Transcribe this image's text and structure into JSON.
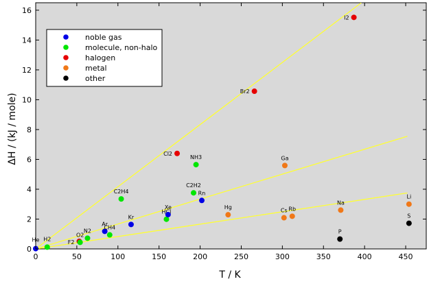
{
  "chart_data": {
    "type": "scatter",
    "xlabel": "T / K",
    "ylabel": "ΔH / (kJ / mole)",
    "xlim": [
      0,
      475
    ],
    "ylim": [
      0,
      16.5
    ],
    "xticks": [
      0,
      50,
      100,
      150,
      200,
      250,
      300,
      350,
      400,
      450
    ],
    "yticks": [
      0,
      2,
      4,
      6,
      8,
      10,
      12,
      14,
      16
    ],
    "grid": false,
    "legend_position": "top-left",
    "background": "#d9d9d9",
    "categories": [
      {
        "key": "noble",
        "name": "noble gas",
        "color": "#0000e6"
      },
      {
        "key": "molecule",
        "name": "molecule, non-halo",
        "color": "#00e600"
      },
      {
        "key": "halogen",
        "name": "halogen",
        "color": "#e60000"
      },
      {
        "key": "metal",
        "name": "metal",
        "color": "#f07818"
      },
      {
        "key": "other",
        "name": "other",
        "color": "#000000"
      }
    ],
    "points": [
      {
        "label": "He",
        "x": 0,
        "y": 0.02,
        "cat": "noble"
      },
      {
        "label": "H2",
        "x": 14,
        "y": 0.12,
        "cat": "molecule"
      },
      {
        "label": "F2",
        "x": 53,
        "y": 0.51,
        "cat": "halogen"
      },
      {
        "label": "O2",
        "x": 54,
        "y": 0.44,
        "cat": "molecule"
      },
      {
        "label": "N2",
        "x": 63,
        "y": 0.72,
        "cat": "molecule"
      },
      {
        "label": "Ar",
        "x": 84,
        "y": 1.18,
        "cat": "noble"
      },
      {
        "label": "CH4",
        "x": 90,
        "y": 0.94,
        "cat": "molecule"
      },
      {
        "label": "Kr",
        "x": 116,
        "y": 1.64,
        "cat": "noble"
      },
      {
        "label": "C2H4",
        "x": 104,
        "y": 3.35,
        "cat": "molecule"
      },
      {
        "label": "HCl",
        "x": 159,
        "y": 1.99,
        "cat": "molecule"
      },
      {
        "label": "Xe",
        "x": 161,
        "y": 2.3,
        "cat": "noble"
      },
      {
        "label": "Cl2",
        "x": 172,
        "y": 6.4,
        "cat": "halogen"
      },
      {
        "label": "C2H2",
        "x": 192,
        "y": 3.76,
        "cat": "molecule"
      },
      {
        "label": "NH3",
        "x": 195,
        "y": 5.65,
        "cat": "molecule"
      },
      {
        "label": "Rn",
        "x": 202,
        "y": 3.25,
        "cat": "noble"
      },
      {
        "label": "Hg",
        "x": 234,
        "y": 2.29,
        "cat": "metal"
      },
      {
        "label": "Br2",
        "x": 266,
        "y": 10.57,
        "cat": "halogen"
      },
      {
        "label": "Cs",
        "x": 302,
        "y": 2.09,
        "cat": "metal"
      },
      {
        "label": "Ga",
        "x": 303,
        "y": 5.59,
        "cat": "metal"
      },
      {
        "label": "Rb",
        "x": 312,
        "y": 2.19,
        "cat": "metal"
      },
      {
        "label": "Na",
        "x": 371,
        "y": 2.6,
        "cat": "metal"
      },
      {
        "label": "P",
        "x": 370,
        "y": 0.66,
        "cat": "other"
      },
      {
        "label": "I2",
        "x": 387,
        "y": 15.52,
        "cat": "halogen"
      },
      {
        "label": "Li",
        "x": 454,
        "y": 3.0,
        "cat": "metal"
      },
      {
        "label": "S",
        "x": 454,
        "y": 1.72,
        "cat": "other"
      }
    ],
    "reference_lines": [
      {
        "x": [
          0,
          396
        ],
        "y": [
          0,
          16.5
        ],
        "color": "#ffff33"
      },
      {
        "x": [
          0,
          452
        ],
        "y": [
          0,
          7.55
        ],
        "color": "#ffff33"
      },
      {
        "x": [
          0,
          452
        ],
        "y": [
          0,
          3.75
        ],
        "color": "#ffff33"
      }
    ]
  }
}
